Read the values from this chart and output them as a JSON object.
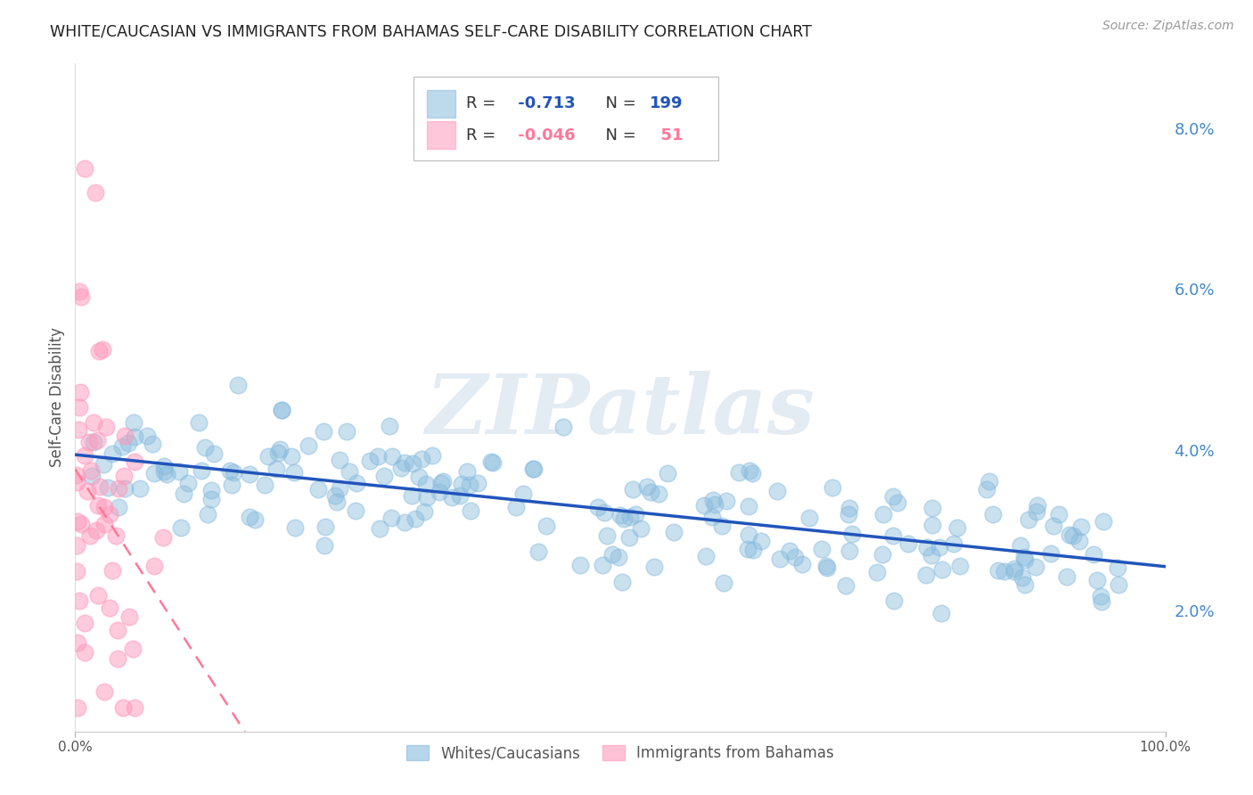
{
  "title": "WHITE/CAUCASIAN VS IMMIGRANTS FROM BAHAMAS SELF-CARE DISABILITY CORRELATION CHART",
  "source": "Source: ZipAtlas.com",
  "ylabel": "Self-Care Disability",
  "watermark": "ZIPatlas",
  "legend_blue_label": "Whites/Caucasians",
  "legend_pink_label": "Immigrants from Bahamas",
  "legend_blue_R": "-0.713",
  "legend_blue_N": "199",
  "legend_pink_R": "-0.046",
  "legend_pink_N": "51",
  "blue_color": "#88BBDD",
  "pink_color": "#FF99BB",
  "trend_blue_color": "#2255BB",
  "trend_pink_color": "#FF7799",
  "right_axis_color": "#4488CC",
  "grid_color": "#DDDDDD",
  "yticks_right": [
    0.02,
    0.04,
    0.06,
    0.08
  ],
  "ytick_labels_right": [
    "2.0%",
    "4.0%",
    "6.0%",
    "8.0%"
  ],
  "xmin": 0.0,
  "xmax": 1.0,
  "ymin": 0.005,
  "ymax": 0.088,
  "blue_seed": 42,
  "pink_seed": 17,
  "blue_n": 199,
  "pink_n": 51,
  "blue_R": -0.713,
  "pink_R": -0.046
}
